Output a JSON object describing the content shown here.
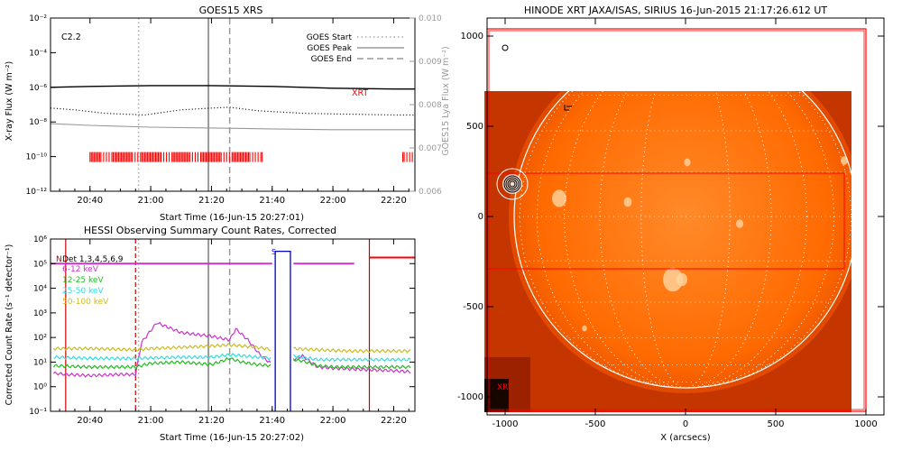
{
  "colors": {
    "axis": "#000000",
    "goes_long": "#000000",
    "goes_short": "#000000",
    "lya": "#999999",
    "xrt_marks": "#ff0000",
    "g_start": "#aaaaaa",
    "g_peak": "#999999",
    "g_end": "#999999",
    "night": "#cc0000",
    "saa": "#0000cc",
    "atten": "#ff0000",
    "ch_6_12": "#cc33cc",
    "ch_12_25": "#22bb22",
    "ch_25_50": "#33dddd",
    "ch_50_100": "#ccbb22",
    "disk_bg": "#ff6a00",
    "disk_dark": "#c43500",
    "limb": "#ffffff",
    "box": "#ff0000"
  },
  "chart_data": [
    {
      "type": "line",
      "title": "GOES15 XRS",
      "xlabel": "Start Time (16-Jun-15 20:27:01)",
      "ylabel": "X-ray Flux (W m⁻²)",
      "ylabel_right": "GOES15 Lya Flux (W m⁻²)",
      "ylim": [
        -12,
        -2
      ],
      "ylim_right": [
        0.006,
        0.01
      ],
      "x_ticks": [
        "20:40",
        "21:00",
        "21:20",
        "21:40",
        "22:00",
        "22:20"
      ],
      "x_tick_min": [
        40,
        60,
        80,
        100,
        120,
        140
      ],
      "xlim_min": [
        27,
        147
      ],
      "y_ticks": [
        "10⁻¹²",
        "10⁻¹⁰",
        "10⁻⁸",
        "10⁻⁶",
        "10⁻⁴",
        "10⁻²"
      ],
      "y_tick_vals": [
        -12,
        -10,
        -8,
        -6,
        -4,
        -2
      ],
      "y_ticks_right": [
        "0.006",
        "0.007",
        "0.008",
        "0.009",
        "0.010"
      ],
      "y_tick_vals_right": [
        0.006,
        0.007,
        0.008,
        0.009,
        0.01
      ],
      "flare_class": "C2.2",
      "legend": {
        "start": "GOES Start",
        "peak": "GOES Peak",
        "end": "GOES End"
      },
      "xrt_label": "XRT",
      "event_times_min": {
        "start": 56,
        "peak": 79,
        "end": 86
      },
      "series": [
        {
          "name": "",
          "style": "solid",
          "x": [
            27,
            40,
            60,
            80,
            100,
            120,
            140,
            147
          ],
          "y": [
            -6.0,
            -5.95,
            -5.9,
            -5.9,
            -5.95,
            -6.05,
            -6.1,
            -6.1
          ]
        },
        {
          "name": "",
          "style": "dotted",
          "x": [
            27,
            35,
            45,
            58,
            62,
            70,
            80,
            86,
            95,
            110,
            125,
            140,
            147
          ],
          "y": [
            -7.2,
            -7.3,
            -7.5,
            -7.6,
            -7.5,
            -7.3,
            -7.2,
            -7.15,
            -7.35,
            -7.5,
            -7.55,
            -7.6,
            -7.6
          ]
        },
        {
          "name": "",
          "style": "gray",
          "x": [
            27,
            40,
            60,
            80,
            100,
            120,
            140,
            147
          ],
          "y": [
            -8.1,
            -8.2,
            -8.3,
            -8.35,
            -8.4,
            -8.45,
            -8.45,
            -8.45
          ]
        }
      ],
      "xrt_windows_min": [
        [
          40,
          97
        ],
        [
          143,
          147
        ]
      ]
    },
    {
      "type": "line",
      "title": "HESSI Observing Summary Count Rates, Corrected",
      "xlabel": "Start Time (16-Jun-15 20:27:02)",
      "ylabel": "Corrected Count Rate (s⁻¹ detector⁻¹)",
      "ylim": [
        -1,
        6
      ],
      "x_ticks": [
        "20:40",
        "21:00",
        "21:20",
        "21:40",
        "22:00",
        "22:20"
      ],
      "x_tick_min": [
        40,
        60,
        80,
        100,
        120,
        140
      ],
      "xlim_min": [
        27,
        147
      ],
      "y_ticks": [
        "10⁻¹",
        "10⁰",
        "10¹",
        "10²",
        "10³",
        "10⁴",
        "10⁵",
        "10⁶"
      ],
      "y_tick_vals": [
        -1,
        0,
        1,
        2,
        3,
        4,
        5,
        6
      ],
      "legend": [
        "Det 1,3,4,5,6,9",
        "6-12 keV",
        "12-25 keV",
        "25-50 keV",
        "50-100 keV"
      ],
      "night_label": "N",
      "saa_label": "S",
      "event_times_min": {
        "start": 56,
        "peak": 79,
        "end": 86
      },
      "night_bounds_min": [
        32,
        55,
        132
      ],
      "saa_window_min": [
        101,
        106
      ],
      "attenuator_segments": [
        {
          "x": [
            27,
            100
          ],
          "y": 5
        },
        {
          "x": [
            107,
            127
          ],
          "y": 5
        },
        {
          "x": [
            132,
            147
          ],
          "y": 5.25
        }
      ],
      "series": [
        {
          "name": "6-12 keV",
          "x": [
            28,
            32,
            40,
            50,
            55,
            57,
            62,
            70,
            80,
            86,
            88,
            92,
            96,
            100,
            107,
            110,
            115,
            120,
            130,
            140,
            146
          ],
          "y": [
            0.55,
            0.5,
            0.45,
            0.5,
            0.5,
            1.8,
            2.6,
            2.2,
            2.05,
            1.9,
            2.35,
            1.9,
            1.3,
            0.9,
            1.1,
            1.25,
            0.8,
            0.75,
            0.7,
            0.65,
            0.6
          ]
        },
        {
          "name": "12-25 keV",
          "x": [
            28,
            40,
            55,
            60,
            70,
            80,
            86,
            90,
            95,
            100,
            107,
            110,
            115,
            120,
            130,
            140,
            146
          ],
          "y": [
            0.85,
            0.8,
            0.8,
            0.95,
            1.0,
            0.9,
            1.15,
            1.0,
            0.9,
            0.85,
            1.1,
            1.05,
            0.85,
            0.8,
            0.8,
            0.8,
            0.8
          ]
        },
        {
          "name": "25-50 keV",
          "x": [
            28,
            40,
            55,
            70,
            80,
            86,
            95,
            100,
            107,
            115,
            125,
            140,
            146
          ],
          "y": [
            1.2,
            1.15,
            1.15,
            1.2,
            1.2,
            1.3,
            1.2,
            1.15,
            1.25,
            1.1,
            1.1,
            1.1,
            1.1
          ]
        },
        {
          "name": "50-100 keV",
          "x": [
            28,
            40,
            55,
            60,
            70,
            80,
            86,
            95,
            100,
            107,
            115,
            125,
            140,
            146
          ],
          "y": [
            1.55,
            1.55,
            1.5,
            1.55,
            1.6,
            1.65,
            1.7,
            1.6,
            1.5,
            1.55,
            1.5,
            1.45,
            1.45,
            1.45
          ]
        }
      ]
    },
    {
      "type": "heatmap",
      "title": "HINODE XRT JAXA/ISAS, SIRIUS 16-Jun-2015 21:17:26.612 UT",
      "xlabel": "X (arcsecs)",
      "ylabel": "",
      "xlim": [
        -1100,
        1100
      ],
      "ylim": [
        -1100,
        1100
      ],
      "x_ticks": [
        "-1000",
        "-500",
        "0",
        "500",
        "1000"
      ],
      "x_tick_vals": [
        -1000,
        -500,
        0,
        500,
        1000
      ],
      "y_ticks": [
        "-1000",
        "-500",
        "0",
        "500",
        "1000"
      ],
      "y_tick_vals": [
        -1000,
        -500,
        0,
        500,
        1000
      ],
      "sun_radius": 950,
      "image_extent": [
        -1115,
        920,
        -1085,
        695
      ],
      "fov_outer": [
        -1100,
        1000,
        -1080,
        1040
      ],
      "fov_inner": [
        -1100,
        880,
        -290,
        240
      ],
      "flare_center": [
        -960,
        180
      ],
      "corner_label": "XRT"
    }
  ]
}
